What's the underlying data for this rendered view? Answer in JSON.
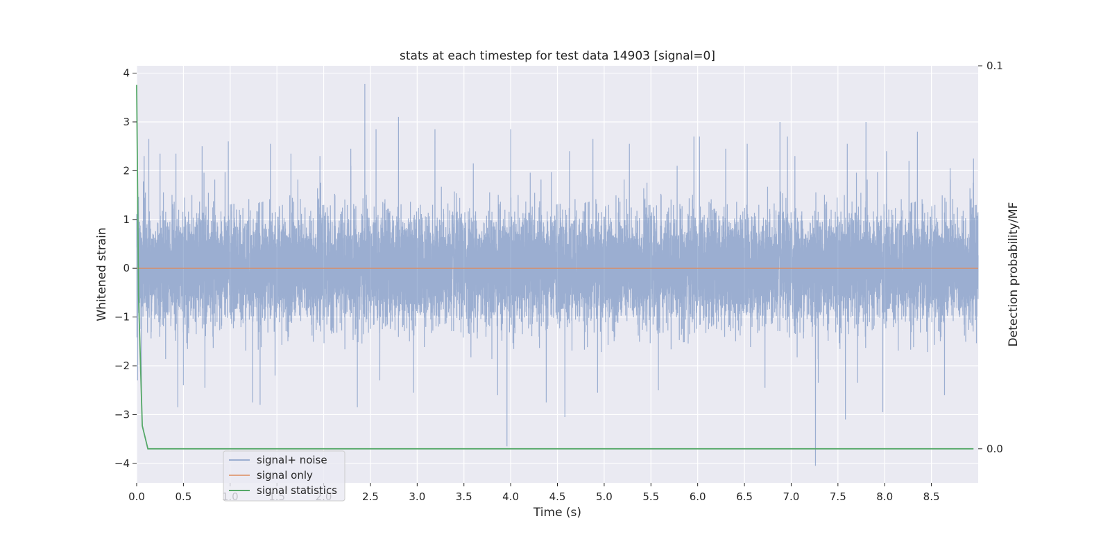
{
  "chart_data": {
    "type": "line",
    "title": "stats at each timestep for test data 14903 [signal=0]",
    "xlabel": "Time (s)",
    "ylabel": "Whitened strain",
    "ylabel_right": "Detection probability/MF",
    "xlim": [
      0.0,
      9.0
    ],
    "ylim": [
      -4.4,
      4.15
    ],
    "ylim_right": [
      -0.0089,
      0.1
    ],
    "x_ticks": [
      0.0,
      0.5,
      1.0,
      1.5,
      2.0,
      2.5,
      3.0,
      3.5,
      4.0,
      4.5,
      5.0,
      5.5,
      6.0,
      6.5,
      7.0,
      7.5,
      8.0,
      8.5
    ],
    "x_tick_labels": [
      "0.0",
      "0.5",
      "1.0",
      "1.5",
      "2.0",
      "2.5",
      "3.0",
      "3.5",
      "4.0",
      "4.5",
      "5.0",
      "5.5",
      "6.0",
      "6.5",
      "7.0",
      "7.5",
      "8.0",
      "8.5"
    ],
    "y_ticks": [
      4,
      3,
      2,
      1,
      0,
      -1,
      -2,
      -3,
      -4
    ],
    "y_tick_labels": [
      "4",
      "3",
      "2",
      "1",
      "0",
      "−1",
      "−2",
      "−3",
      "−4"
    ],
    "y_ticks_right": [
      0.1,
      0.0
    ],
    "y_tick_labels_right": [
      "0.1",
      "0.0"
    ],
    "grid": true,
    "legend_position": "lower left",
    "series": [
      {
        "name": "signal+ noise",
        "axis": "left",
        "color": "#4c72b0",
        "alpha": 0.5,
        "kind": "noise",
        "sample_rate": 1500,
        "duration": 9.0,
        "typical_envelope": [
          -1.1,
          1.2
        ],
        "peaks": [
          {
            "x": 0.01,
            "y": -2.3
          },
          {
            "x": 0.05,
            "y": -2.7
          },
          {
            "x": 0.08,
            "y": 2.3
          },
          {
            "x": 0.13,
            "y": 2.65
          },
          {
            "x": 0.25,
            "y": 2.35
          },
          {
            "x": 0.42,
            "y": 2.35
          },
          {
            "x": 0.44,
            "y": -2.85
          },
          {
            "x": 0.5,
            "y": -2.4
          },
          {
            "x": 0.7,
            "y": 2.5
          },
          {
            "x": 0.73,
            "y": -2.45
          },
          {
            "x": 0.98,
            "y": 2.6
          },
          {
            "x": 1.24,
            "y": -2.75
          },
          {
            "x": 1.32,
            "y": -2.8
          },
          {
            "x": 1.43,
            "y": 2.55
          },
          {
            "x": 1.48,
            "y": -2.2
          },
          {
            "x": 1.65,
            "y": 2.35
          },
          {
            "x": 1.96,
            "y": 2.3
          },
          {
            "x": 2.29,
            "y": 2.45
          },
          {
            "x": 2.36,
            "y": -2.85
          },
          {
            "x": 2.44,
            "y": 3.78
          },
          {
            "x": 2.56,
            "y": 2.85
          },
          {
            "x": 2.6,
            "y": -2.3
          },
          {
            "x": 2.8,
            "y": 3.1
          },
          {
            "x": 2.96,
            "y": -2.55
          },
          {
            "x": 3.19,
            "y": 2.85
          },
          {
            "x": 3.6,
            "y": 2.15
          },
          {
            "x": 3.86,
            "y": -2.6
          },
          {
            "x": 3.96,
            "y": -3.65
          },
          {
            "x": 4.0,
            "y": 2.85
          },
          {
            "x": 4.38,
            "y": -2.75
          },
          {
            "x": 4.58,
            "y": -3.05
          },
          {
            "x": 4.63,
            "y": 2.4
          },
          {
            "x": 4.88,
            "y": 2.65
          },
          {
            "x": 4.93,
            "y": -2.55
          },
          {
            "x": 5.27,
            "y": 2.55
          },
          {
            "x": 5.58,
            "y": -2.5
          },
          {
            "x": 5.96,
            "y": 2.7
          },
          {
            "x": 6.02,
            "y": 2.7
          },
          {
            "x": 6.3,
            "y": 2.45
          },
          {
            "x": 6.53,
            "y": 2.55
          },
          {
            "x": 6.72,
            "y": -2.45
          },
          {
            "x": 6.88,
            "y": 3.0
          },
          {
            "x": 6.96,
            "y": 2.7
          },
          {
            "x": 7.04,
            "y": 2.3
          },
          {
            "x": 7.26,
            "y": -4.05
          },
          {
            "x": 7.29,
            "y": -2.35
          },
          {
            "x": 7.58,
            "y": -3.1
          },
          {
            "x": 7.6,
            "y": 2.55
          },
          {
            "x": 7.71,
            "y": -2.35
          },
          {
            "x": 7.8,
            "y": 3.0
          },
          {
            "x": 7.98,
            "y": -2.95
          },
          {
            "x": 8.02,
            "y": 2.4
          },
          {
            "x": 8.26,
            "y": 2.2
          },
          {
            "x": 8.35,
            "y": 2.8
          },
          {
            "x": 8.64,
            "y": -2.6
          },
          {
            "x": 8.7,
            "y": 2.05
          },
          {
            "x": 8.95,
            "y": 2.25
          }
        ]
      },
      {
        "name": "signal only",
        "axis": "left",
        "color": "#dd8452",
        "alpha": 0.7,
        "x": [
          0.0,
          9.0
        ],
        "y": [
          0.0,
          0.0
        ]
      },
      {
        "name": "signal statistics",
        "axis": "right",
        "color": "#55a868",
        "alpha": 1.0,
        "x": [
          0.0,
          0.02,
          0.06,
          0.12,
          8.95
        ],
        "y": [
          0.095,
          0.04,
          0.006,
          0.0,
          0.0
        ]
      }
    ]
  }
}
